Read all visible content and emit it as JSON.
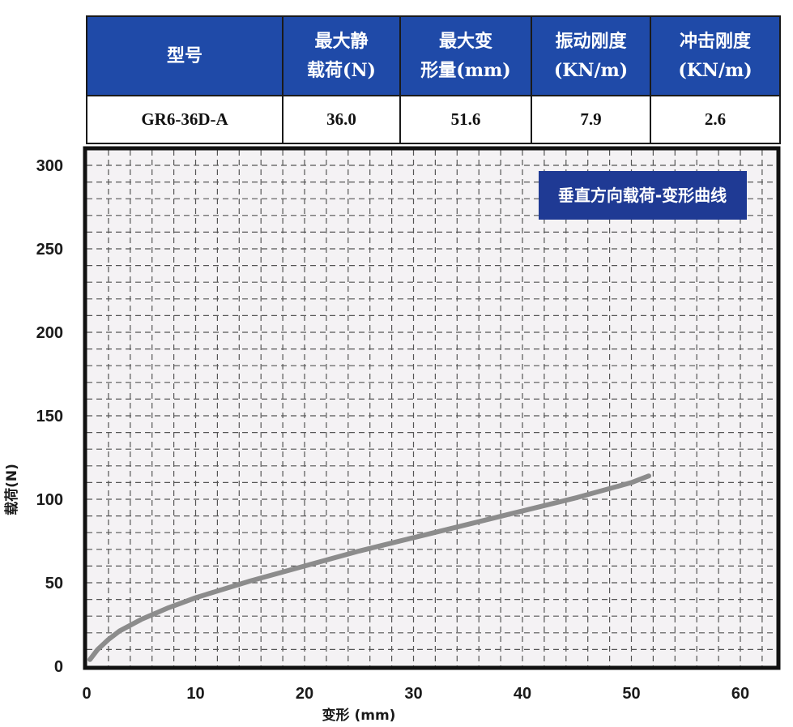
{
  "table": {
    "headers": [
      [
        "型号"
      ],
      [
        "最大静",
        "载荷(N)"
      ],
      [
        "最大变",
        "形量(mm)"
      ],
      [
        "振动刚度",
        "(KN/m)"
      ],
      [
        "冲击刚度",
        "(KN/m)"
      ]
    ],
    "row": [
      "GR6-36D-A",
      "36.0",
      "51.6",
      "7.9",
      "2.6"
    ],
    "header_bg": "#1f4aa8",
    "header_fg": "#ffffff"
  },
  "chart_data": {
    "type": "line",
    "title": "垂直方向载荷-变形曲线",
    "xlabel": "变形 (mm)",
    "ylabel": "载荷(N)",
    "xlim": [
      0,
      64
    ],
    "ylim": [
      0,
      300
    ],
    "xticks": [
      0,
      10,
      20,
      30,
      40,
      50,
      60
    ],
    "yticks": [
      0,
      50,
      100,
      150,
      200,
      250,
      300
    ],
    "grid": true,
    "legend_position": "top-right",
    "series": [
      {
        "color": "#8c8c8c",
        "x": [
          0.3,
          1,
          2,
          3,
          5,
          7.5,
          10,
          15,
          20,
          25,
          30,
          35,
          40,
          45,
          50,
          51.6
        ],
        "y": [
          4,
          10,
          16,
          21,
          28,
          35,
          41,
          51,
          60,
          69,
          77,
          85,
          93,
          101,
          110,
          114
        ]
      }
    ],
    "colors": {
      "title_box": "#1f3a94",
      "plot_bg": "#f4f2f4",
      "grid": "#555555",
      "frame": "#111111"
    }
  }
}
